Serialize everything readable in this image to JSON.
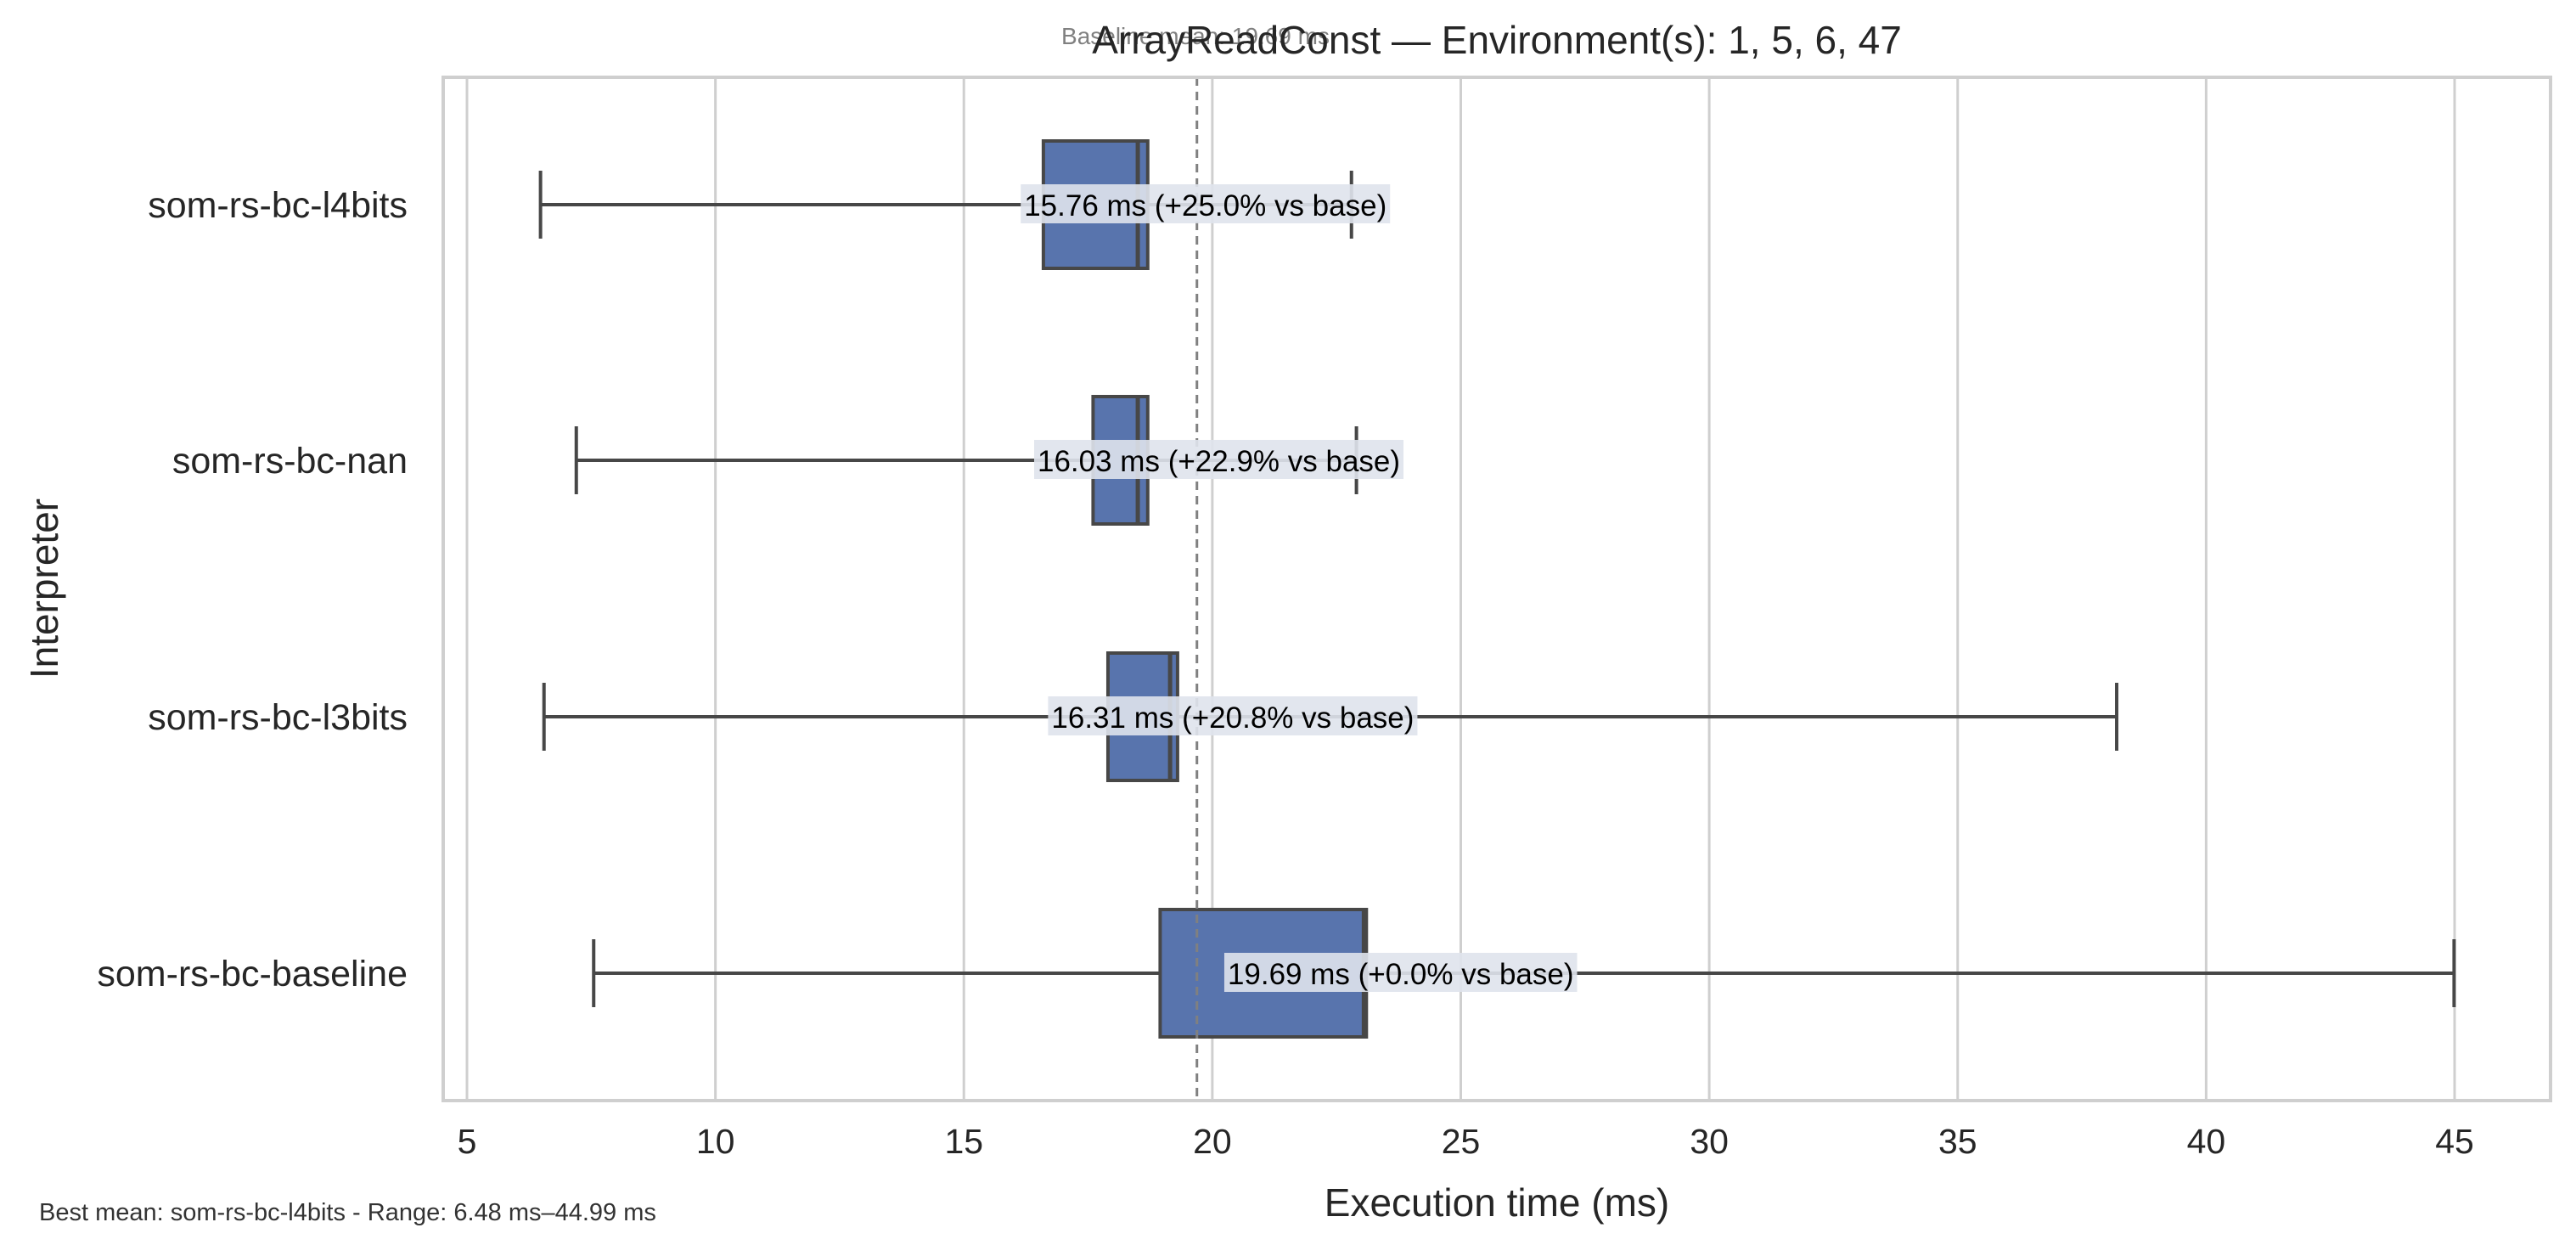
{
  "chart_data": {
    "type": "box",
    "orientation": "horizontal",
    "title": "ArrayReadConst — Environment(s): 1, 5, 6, 47",
    "baseline_note": "Baseline mean: 19.69 ms",
    "xlabel": "Execution time (ms)",
    "ylabel": "Interpreter",
    "xlim": [
      4.5,
      47.1
    ],
    "xticks": [
      5,
      10,
      15,
      20,
      25,
      30,
      35,
      40,
      45
    ],
    "grid": "vertical",
    "baseline_mean": 19.69,
    "footer": "Best mean: som-rs-bc-l4bits - Range: 6.48 ms–44.99 ms",
    "categories": [
      "som-rs-bc-l4bits",
      "som-rs-bc-nan",
      "som-rs-bc-l3bits",
      "som-rs-bc-baseline"
    ],
    "boxes": [
      {
        "name": "som-rs-bc-l4bits",
        "whisker_low": 6.48,
        "q1": 16.6,
        "median": 18.5,
        "q3": 18.7,
        "whisker_high": 22.8,
        "mean": 15.76,
        "label": "15.76 ms  (+25.0% vs base)"
      },
      {
        "name": "som-rs-bc-nan",
        "whisker_low": 7.2,
        "q1": 17.6,
        "median": 18.5,
        "q3": 18.7,
        "whisker_high": 22.9,
        "mean": 16.03,
        "label": "16.03 ms  (+22.9% vs base)"
      },
      {
        "name": "som-rs-bc-l3bits",
        "whisker_low": 6.55,
        "q1": 17.9,
        "median": 19.15,
        "q3": 19.3,
        "whisker_high": 38.2,
        "mean": 16.31,
        "label": "16.31 ms  (+20.8% vs base)"
      },
      {
        "name": "som-rs-bc-baseline",
        "whisker_low": 7.55,
        "q1": 18.95,
        "median": 23.05,
        "q3": 23.1,
        "whisker_high": 44.99,
        "mean": 19.69,
        "label": "19.69 ms  (+0.0% vs base)"
      }
    ],
    "colors": {
      "box_fill": "#5874ad",
      "box_edge": "#474747",
      "whisker": "#474747",
      "grid": "#cfcfcf",
      "frame": "#cfcfcf",
      "baseline_line": "#808080",
      "label_bg": "#dfe3ec",
      "text": "#262626",
      "note": "#808080"
    }
  }
}
